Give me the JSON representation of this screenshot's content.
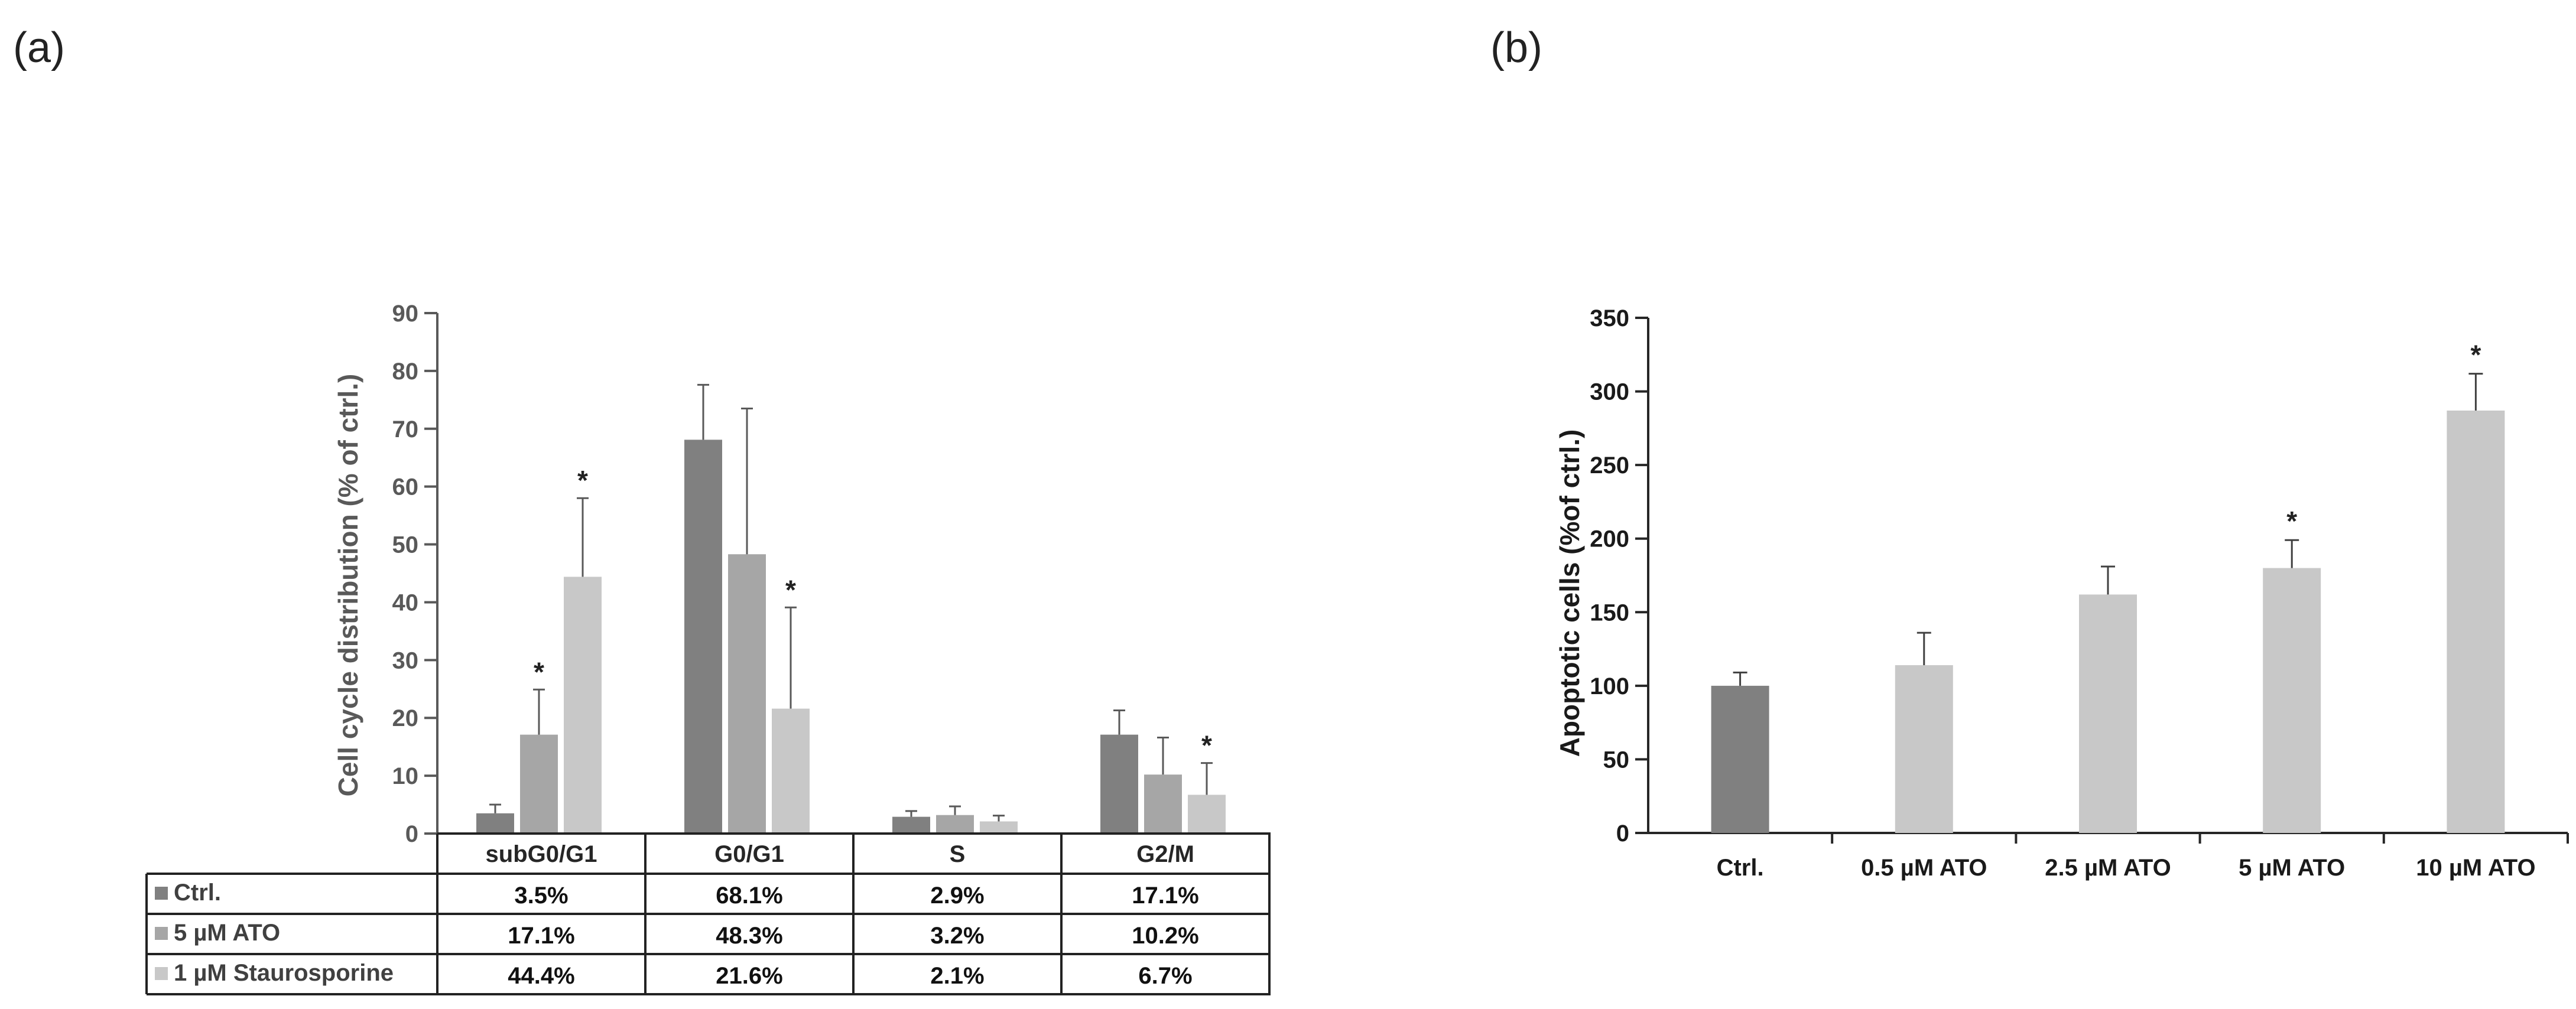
{
  "panel_labels": [
    "(a)",
    "(b)"
  ],
  "chart_data": [
    {
      "type": "bar",
      "ylabel": "Cell cycle distribution (% of ctrl.)",
      "ylim": [
        0,
        90
      ],
      "yticks": [
        0,
        10,
        20,
        30,
        40,
        50,
        60,
        70,
        80,
        90
      ],
      "categories": [
        "subG0/G1",
        "G0/G1",
        "S",
        "G2/M"
      ],
      "series": [
        {
          "name": "Ctrl.",
          "color": "#808080",
          "values": [
            3.5,
            68.1,
            2.9,
            17.1
          ],
          "errors": [
            1.5,
            9.5,
            1.0,
            4.2
          ],
          "stars": [
            false,
            false,
            false,
            false
          ],
          "labels": [
            "3.5%",
            "68.1%",
            "2.9%",
            "17.1%"
          ]
        },
        {
          "name": "5 µM ATO",
          "color": "#a6a6a6",
          "values": [
            17.1,
            48.3,
            3.2,
            10.2
          ],
          "errors": [
            7.8,
            25.2,
            1.5,
            6.4
          ],
          "stars": [
            true,
            false,
            false,
            false
          ],
          "labels": [
            "17.1%",
            "48.3%",
            "3.2%",
            "10.2%"
          ]
        },
        {
          "name": "1 µM Staurosporine",
          "color": "#c8c8c8",
          "values": [
            44.4,
            21.6,
            2.1,
            6.7
          ],
          "errors": [
            13.6,
            17.5,
            1.0,
            5.5
          ],
          "stars": [
            true,
            true,
            false,
            true
          ],
          "labels": [
            "44.4%",
            "21.6%",
            "2.1%",
            "6.7%"
          ]
        }
      ],
      "star_symbol": "*"
    },
    {
      "type": "bar",
      "ylabel": "Apoptotic cells (%of ctrl.)",
      "ylim": [
        0,
        350
      ],
      "yticks": [
        0,
        50,
        100,
        150,
        200,
        250,
        300,
        350
      ],
      "categories": [
        "Ctrl.",
        "0.5 µM ATO",
        "2.5 µM ATO",
        "5 µM ATO",
        "10 µM ATO"
      ],
      "values": [
        100,
        114,
        162,
        180,
        287
      ],
      "errors": [
        9,
        22,
        19,
        19,
        25
      ],
      "colors": [
        "#808080",
        "#c8c8c8",
        "#c8c8c8",
        "#c8c8c8",
        "#c8c8c8"
      ],
      "stars": [
        false,
        false,
        false,
        true,
        true
      ],
      "star_symbol": "*"
    }
  ]
}
